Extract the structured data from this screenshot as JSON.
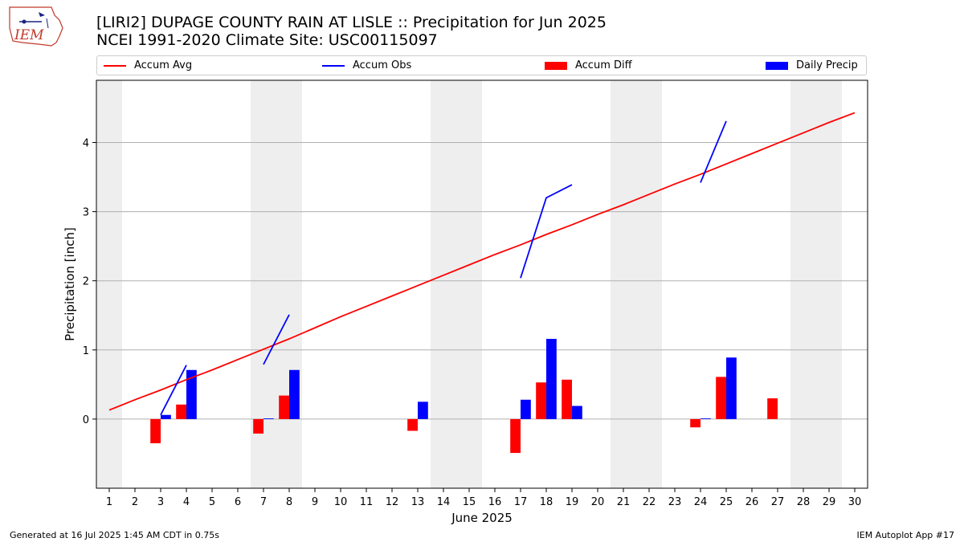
{
  "header": {
    "title_line1": "[LIRI2] DUPAGE COUNTY RAIN AT LISLE :: Precipitation for Jun 2025",
    "title_line2": "NCEI 1991-2020 Climate Site: USC00115097",
    "logo_text": "IEM"
  },
  "footer": {
    "generated": "Generated at 16 Jul 2025 1:45 AM CDT in 0.75s",
    "app": "IEM Autoplot App #17"
  },
  "colors": {
    "accum_avg": "#ff0000",
    "accum_obs": "#0000ff",
    "accum_diff": "#ff0000",
    "daily_precip": "#0000ff",
    "weekend_band": "#eeeeee",
    "grid": "#b0b0b0"
  },
  "chart_data": {
    "type": "bar",
    "xlabel": "June 2025",
    "ylabel": "Precipitation [inch]",
    "xlim": [
      0.5,
      30.5
    ],
    "ylim": [
      -1.0,
      4.9
    ],
    "yticks": [
      0,
      1,
      2,
      3,
      4
    ],
    "grid": "horizontal",
    "legend_placement": "top",
    "legend": [
      "Accum Avg",
      "Accum Obs",
      "Accum Diff",
      "Daily Precip"
    ],
    "x": [
      1,
      2,
      3,
      4,
      5,
      6,
      7,
      8,
      9,
      10,
      11,
      12,
      13,
      14,
      15,
      16,
      17,
      18,
      19,
      20,
      21,
      22,
      23,
      24,
      25,
      26,
      27,
      28,
      29,
      30
    ],
    "weekend_bands": [
      [
        0.5,
        1.5
      ],
      [
        6.5,
        8.5
      ],
      [
        13.5,
        15.5
      ],
      [
        20.5,
        22.5
      ],
      [
        27.5,
        29.5
      ]
    ],
    "series": [
      {
        "name": "Accum Avg",
        "type": "line",
        "values": [
          0.13,
          0.28,
          0.42,
          0.57,
          0.71,
          0.86,
          1.01,
          1.16,
          1.32,
          1.48,
          1.63,
          1.78,
          1.93,
          2.08,
          2.23,
          2.38,
          2.52,
          2.67,
          2.81,
          2.96,
          3.1,
          3.25,
          3.4,
          3.54,
          3.69,
          3.84,
          3.99,
          4.14,
          4.29,
          4.43
        ]
      },
      {
        "name": "Accum Obs",
        "type": "line",
        "segments": [
          [
            [
              3,
              0.06
            ],
            [
              4,
              0.78
            ]
          ],
          [
            [
              7,
              0.79
            ],
            [
              8,
              1.51
            ]
          ],
          [
            [
              17,
              2.04
            ],
            [
              18,
              3.2
            ],
            [
              19,
              3.39
            ]
          ],
          [
            [
              24,
              3.42
            ],
            [
              25,
              4.31
            ]
          ]
        ]
      },
      {
        "name": "Accum Diff",
        "type": "bar",
        "values": [
          [
            3,
            -0.35
          ],
          [
            4,
            0.21
          ],
          [
            7,
            -0.21
          ],
          [
            8,
            0.34
          ],
          [
            13,
            -0.17
          ],
          [
            17,
            -0.49
          ],
          [
            18,
            0.53
          ],
          [
            19,
            0.57
          ],
          [
            24,
            -0.12
          ],
          [
            25,
            0.61
          ],
          [
            27,
            0.3
          ]
        ]
      },
      {
        "name": "Daily Precip",
        "type": "bar",
        "values": [
          [
            3,
            0.06
          ],
          [
            4,
            0.71
          ],
          [
            7,
            0.01
          ],
          [
            8,
            0.71
          ],
          [
            13,
            0.25
          ],
          [
            17,
            0.28
          ],
          [
            18,
            1.16
          ],
          [
            19,
            0.19
          ],
          [
            24,
            0.01
          ],
          [
            25,
            0.89
          ]
        ]
      }
    ]
  }
}
